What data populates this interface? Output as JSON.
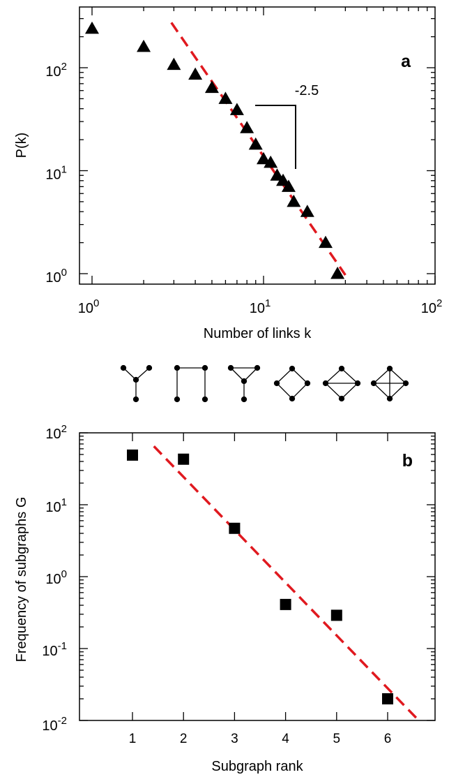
{
  "fit_color": "#e0191f",
  "marker_color": "#000000",
  "motif_icons": [
    "y-branch-motif-icon",
    "bridge-motif-icon",
    "triangle-tail-motif-icon",
    "square-loop-motif-icon",
    "diamond-bar-motif-icon",
    "diamond-cross-motif-icon"
  ],
  "chart_data": [
    {
      "type": "scatter",
      "panel_label": "a",
      "xlabel": "Number of links k",
      "ylabel": "P(k)",
      "x_scale": "log",
      "y_scale": "log",
      "xlim": [
        0.8,
        100
      ],
      "ylim": [
        0.85,
        320
      ],
      "x_ticks": [
        {
          "base": "10",
          "exp": "0",
          "value": 1
        },
        {
          "base": "10",
          "exp": "1",
          "value": 10
        },
        {
          "base": "10",
          "exp": "2",
          "value": 100
        }
      ],
      "y_ticks": [
        {
          "base": "10",
          "exp": "0",
          "value": 1
        },
        {
          "base": "10",
          "exp": "1",
          "value": 10
        },
        {
          "base": "10",
          "exp": "2",
          "value": 100
        }
      ],
      "marker": "triangle",
      "points": [
        {
          "x": 1,
          "y": 240
        },
        {
          "x": 2,
          "y": 160
        },
        {
          "x": 3,
          "y": 107
        },
        {
          "x": 4,
          "y": 86
        },
        {
          "x": 5,
          "y": 64
        },
        {
          "x": 6,
          "y": 50
        },
        {
          "x": 7,
          "y": 39
        },
        {
          "x": 8,
          "y": 26
        },
        {
          "x": 9,
          "y": 18
        },
        {
          "x": 10,
          "y": 13
        },
        {
          "x": 11,
          "y": 12
        },
        {
          "x": 12,
          "y": 9
        },
        {
          "x": 13,
          "y": 8
        },
        {
          "x": 14,
          "y": 7
        },
        {
          "x": 15,
          "y": 5
        },
        {
          "x": 18,
          "y": 4
        },
        {
          "x": 23,
          "y": 2
        },
        {
          "x": 27,
          "y": 1
        }
      ],
      "fit_line": {
        "x": [
          2.9,
          30
        ],
        "y": [
          274,
          0.97
        ],
        "style": "dashed"
      },
      "slope_annotation": {
        "text": "-2.5"
      }
    },
    {
      "type": "scatter",
      "panel_label": "b",
      "xlabel": "Subgraph rank",
      "ylabel": "Frequency of subgraphs G",
      "x_scale": "linear",
      "y_scale": "log",
      "xlim": [
        0,
        6.65
      ],
      "ylim": [
        0.01,
        100
      ],
      "x_ticks": [
        {
          "label": "1",
          "value": 1
        },
        {
          "label": "2",
          "value": 2
        },
        {
          "label": "3",
          "value": 3
        },
        {
          "label": "4",
          "value": 4
        },
        {
          "label": "5",
          "value": 5
        },
        {
          "label": "6",
          "value": 6
        }
      ],
      "y_ticks": [
        {
          "base": "10",
          "exp": "2",
          "value": 100
        },
        {
          "base": "10",
          "exp": "1",
          "value": 10
        },
        {
          "base": "10",
          "exp": "0",
          "value": 1
        },
        {
          "base": "10",
          "exp": "-1",
          "value": 0.1
        },
        {
          "base": "10",
          "exp": "-2",
          "value": 0.01
        }
      ],
      "marker": "square",
      "points": [
        {
          "x": 1,
          "y": 49
        },
        {
          "x": 2,
          "y": 43
        },
        {
          "x": 3,
          "y": 4.7
        },
        {
          "x": 4,
          "y": 0.41
        },
        {
          "x": 5,
          "y": 0.29
        },
        {
          "x": 6,
          "y": 0.02
        }
      ],
      "fit_line": {
        "x": [
          1.42,
          6.58
        ],
        "y": [
          65,
          0.0105
        ],
        "style": "dashed"
      }
    }
  ]
}
